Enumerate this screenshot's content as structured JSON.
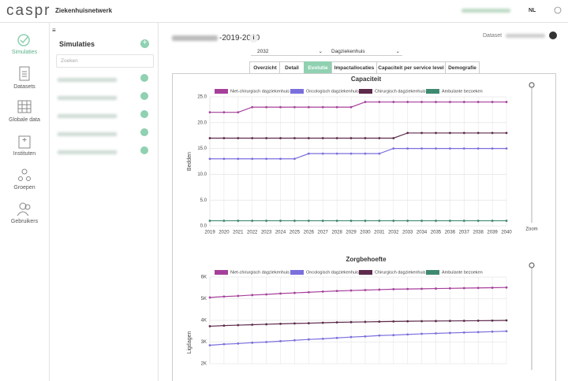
{
  "header": {
    "logo": "caspr",
    "title": "Ziekenhuisnetwerk",
    "language": "NL"
  },
  "nav": [
    "Simulaties",
    "Datasets",
    "Globale data",
    "Instituten",
    "Groepen",
    "Gebruikers"
  ],
  "simulations": {
    "title": "Simulaties",
    "search_placeholder": "Zoeken"
  },
  "main": {
    "title_suffix": "-2019-2040",
    "dataset_label": "Dataset",
    "year": "2032",
    "department": "Dagziekenhuis",
    "tabs": [
      "Overzicht",
      "Detail",
      "Evolutie",
      "Impactallocaties",
      "Capaciteit per service level",
      "Demografie"
    ],
    "active_tab_index": 2,
    "zoom_label": "Zoom"
  },
  "chart_data": [
    {
      "type": "line",
      "title": "Capaciteit",
      "y_label": "Bedden",
      "x": [
        2019,
        2020,
        2021,
        2022,
        2023,
        2024,
        2025,
        2026,
        2027,
        2028,
        2029,
        2030,
        2031,
        2032,
        2033,
        2034,
        2035,
        2036,
        2037,
        2038,
        2039,
        2040
      ],
      "xlim": [
        2019,
        2040
      ],
      "show_x_labels": true,
      "ylim": [
        0,
        25
      ],
      "yticks": [
        {
          "value": 0,
          "label": "0.0"
        },
        {
          "value": 5,
          "label": "5.0"
        },
        {
          "value": 10,
          "label": "10.0"
        },
        {
          "value": 15,
          "label": "15.0"
        },
        {
          "value": 20,
          "label": "20.0"
        },
        {
          "value": 25,
          "label": "25.0"
        }
      ],
      "grid": true,
      "series": [
        {
          "name": "Niet-chirurgisch dagziekenhuis",
          "color": "#a5409a",
          "values": [
            22,
            22,
            22,
            23,
            23,
            23,
            23,
            23,
            23,
            23,
            23,
            24,
            24,
            24,
            24,
            24,
            24,
            24,
            24,
            24,
            24,
            24
          ]
        },
        {
          "name": "Oncologisch dagziekenhuis",
          "color": "#7b6fdc",
          "values": [
            13,
            13,
            13,
            13,
            13,
            13,
            13,
            14,
            14,
            14,
            14,
            14,
            14,
            15,
            15,
            15,
            15,
            15,
            15,
            15,
            15,
            15
          ]
        },
        {
          "name": "Chirurgisch dagziekenhuis",
          "color": "#5e2a4b",
          "values": [
            17,
            17,
            17,
            17,
            17,
            17,
            17,
            17,
            17,
            17,
            17,
            17,
            17,
            17,
            18,
            18,
            18,
            18,
            18,
            18,
            18,
            18
          ]
        },
        {
          "name": "Ambulante bezoeken",
          "color": "#3f8a6f",
          "values": [
            1,
            1,
            1,
            1,
            1,
            1,
            1,
            1,
            1,
            1,
            1,
            1,
            1,
            1,
            1,
            1,
            1,
            1,
            1,
            1,
            1,
            1
          ]
        }
      ]
    },
    {
      "type": "line",
      "title": "Zorgbehoefte",
      "y_label": "Ligdagen",
      "x": [
        2019,
        2020,
        2021,
        2022,
        2023,
        2024,
        2025,
        2026,
        2027,
        2028,
        2029,
        2030,
        2031,
        2032,
        2033,
        2034,
        2035,
        2036,
        2037,
        2038,
        2039,
        2040
      ],
      "xlim": [
        2019,
        2040
      ],
      "show_x_labels": false,
      "ylim": [
        2000,
        6000
      ],
      "yticks": [
        {
          "value": 2000,
          "label": "2K"
        },
        {
          "value": 3000,
          "label": "3K"
        },
        {
          "value": 4000,
          "label": "4K"
        },
        {
          "value": 5000,
          "label": "5K"
        },
        {
          "value": 6000,
          "label": "6K"
        }
      ],
      "grid": true,
      "series": [
        {
          "name": "Niet-chirurgisch dagziekenhuis",
          "color": "#a5409a",
          "values": [
            5060,
            5100,
            5130,
            5170,
            5200,
            5240,
            5270,
            5300,
            5330,
            5360,
            5380,
            5400,
            5420,
            5440,
            5450,
            5460,
            5470,
            5480,
            5490,
            5500,
            5510,
            5520
          ]
        },
        {
          "name": "Oncologisch dagziekenhuis",
          "color": "#7b6fdc",
          "values": [
            2850,
            2900,
            2930,
            2970,
            3000,
            3040,
            3080,
            3120,
            3150,
            3190,
            3230,
            3260,
            3300,
            3320,
            3350,
            3380,
            3400,
            3420,
            3440,
            3460,
            3480,
            3500
          ]
        },
        {
          "name": "Chirurgisch dagziekenhuis",
          "color": "#5e2a4b",
          "values": [
            3730,
            3760,
            3780,
            3800,
            3820,
            3840,
            3860,
            3870,
            3890,
            3910,
            3920,
            3930,
            3940,
            3950,
            3960,
            3965,
            3970,
            3975,
            3980,
            3985,
            3990,
            4000
          ]
        },
        {
          "name": "Ambulante bezoeken",
          "color": "#3f8a6f",
          "values": [
            null,
            null,
            null,
            null,
            null,
            null,
            null,
            null,
            null,
            null,
            null,
            null,
            null,
            null,
            null,
            null,
            null,
            null,
            null,
            null,
            null,
            null
          ]
        }
      ]
    }
  ]
}
